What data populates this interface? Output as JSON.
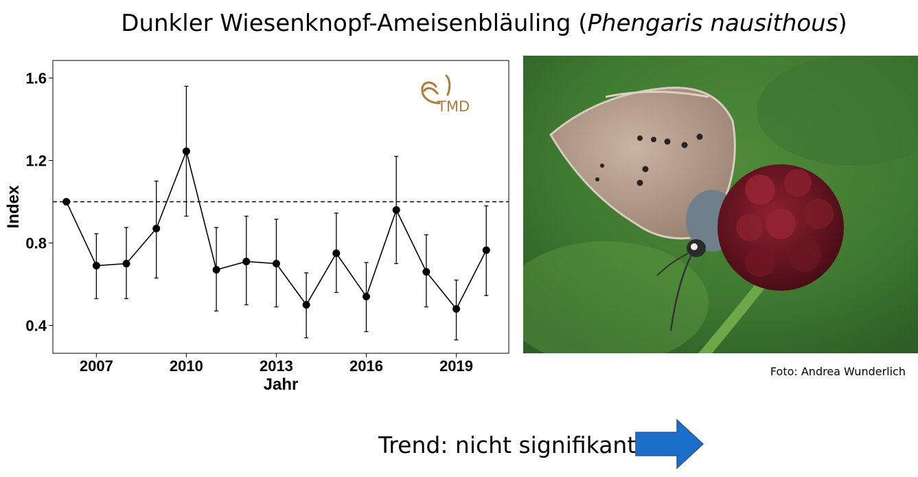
{
  "title": {
    "common_name": "Dunkler Wiesenknopf-Ameisenbläuling",
    "open_paren": "(",
    "scientific_name": "Phengaris nausithous",
    "close_paren": ")"
  },
  "logo": {
    "text": "TMD",
    "color": "#b07a3a"
  },
  "photo": {
    "caption": "Foto: Andrea Wunderlich"
  },
  "trend": {
    "label": "Trend: nicht signifikant",
    "arrow_color": "#1b6fc8",
    "arrow_direction": "right"
  },
  "chart_data": {
    "type": "line",
    "xlabel": "Jahr",
    "ylabel": "Index",
    "xlim": [
      2005.55,
      2020.75
    ],
    "ylim": [
      0.265,
      1.685
    ],
    "x_ticks": [
      2007,
      2010,
      2013,
      2016,
      2019
    ],
    "y_ticks": [
      0.4,
      0.8,
      1.2,
      1.6
    ],
    "y_tick_labels": [
      "0.4",
      "0.8",
      "1.2",
      "1.6"
    ],
    "reference_line": {
      "y": 1.0,
      "style": "dashed"
    },
    "grid": false,
    "series": [
      {
        "x": [
          2006,
          2007,
          2008,
          2009,
          2010,
          2011,
          2012,
          2013,
          2014,
          2015,
          2016,
          2017,
          2018,
          2019,
          2020
        ],
        "y": [
          1.0,
          0.69,
          0.7,
          0.87,
          1.245,
          0.67,
          0.71,
          0.7,
          0.5,
          0.75,
          0.54,
          0.96,
          0.66,
          0.48,
          0.765
        ],
        "err_low": [
          null,
          0.53,
          0.53,
          0.63,
          0.93,
          0.47,
          0.5,
          0.49,
          0.34,
          0.56,
          0.37,
          0.7,
          0.49,
          0.33,
          0.545
        ],
        "err_high": [
          null,
          0.845,
          0.875,
          1.1,
          1.56,
          0.875,
          0.93,
          0.915,
          0.655,
          0.945,
          0.705,
          1.22,
          0.84,
          0.62,
          0.98
        ]
      }
    ]
  }
}
